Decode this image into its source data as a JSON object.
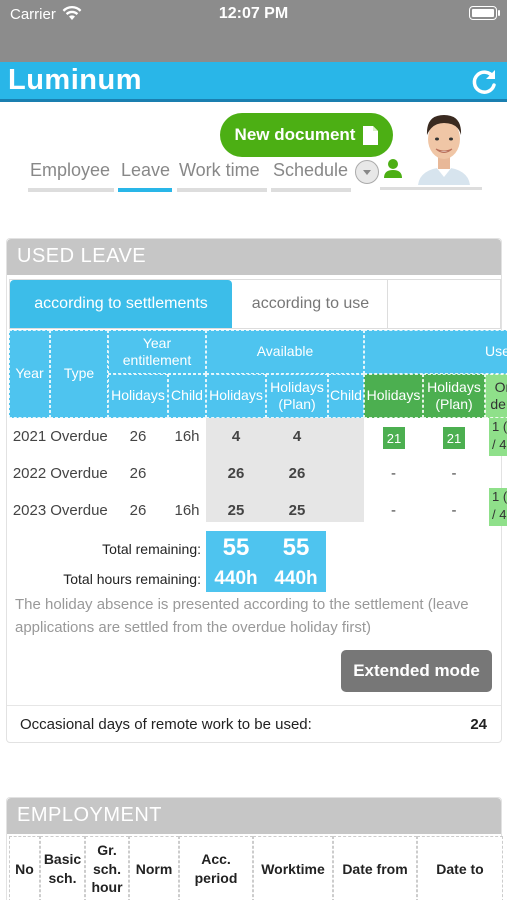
{
  "status_bar": {
    "carrier": "Carrier",
    "time": "12:07 PM"
  },
  "app_bar": {
    "title": "Luminum"
  },
  "header": {
    "new_document_label": "New document",
    "tabs": [
      {
        "label": "Employee",
        "active": false
      },
      {
        "label": "Leave",
        "active": true
      },
      {
        "label": "Work time",
        "active": false
      },
      {
        "label": "Schedule",
        "active": false
      }
    ]
  },
  "used_leave": {
    "title": "USED LEAVE",
    "sub_tabs": [
      "according to settlements",
      "according to use"
    ],
    "headers": {
      "year": "Year",
      "type": "Type",
      "year_entitlement": "Year entitlement",
      "available": "Available",
      "used": "Used",
      "holidays": "Holidays",
      "child": "Child",
      "holidays_plan": "Holidays (Plan)",
      "on_demand_partial": "On dem"
    },
    "rows": [
      {
        "year": "2021",
        "type": "Overdue",
        "ent_holidays": "26",
        "ent_child": "16h",
        "avail_holidays": "4",
        "avail_plan": "4",
        "used_holidays": "21",
        "used_plan": "21",
        "on_demand_1": "1 (",
        "on_demand_2": "/ 4"
      },
      {
        "year": "2022",
        "type": "Overdue",
        "ent_holidays": "26",
        "ent_child": "",
        "avail_holidays": "26",
        "avail_plan": "26",
        "used_holidays": "-",
        "used_plan": "-",
        "on_demand_1": "",
        "on_demand_2": ""
      },
      {
        "year": "2023",
        "type": "Overdue",
        "ent_holidays": "26",
        "ent_child": "16h",
        "avail_holidays": "25",
        "avail_plan": "25",
        "used_holidays": "-",
        "used_plan": "-",
        "on_demand_1": "1 (",
        "on_demand_2": "/ 4"
      }
    ],
    "total_remaining_label": "Total remaining:",
    "total_remaining": [
      "55",
      "55"
    ],
    "total_hours_label": "Total hours remaining:",
    "total_hours": [
      "440h",
      "440h"
    ],
    "note": "The holiday absence is presented according to the settlement (leave applications are settled from the overdue holiday first)",
    "extended_mode_label": "Extended mode",
    "remote_label": "Occasional days of remote work to be used:",
    "remote_value": "24"
  },
  "employment": {
    "title": "EMPLOYMENT",
    "columns": [
      "No",
      "Basic sch.",
      "Gr. sch. hour",
      "Norm",
      "Acc. period",
      "Worktime",
      "Date from",
      "Date to"
    ]
  },
  "colors": {
    "accent": "#29b6e8",
    "green": "#4caf14",
    "header_gray": "#c6c6c6"
  }
}
